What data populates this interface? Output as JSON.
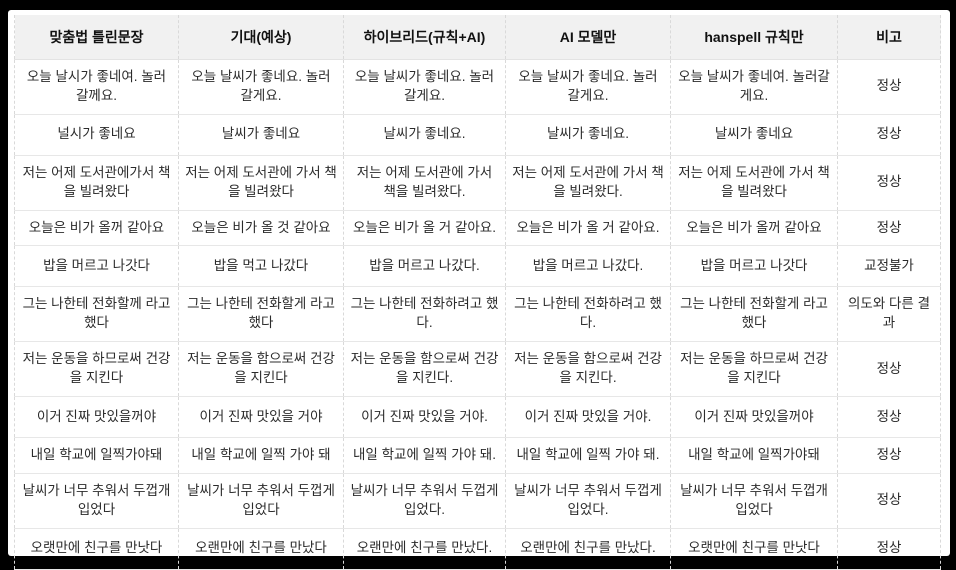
{
  "colors": {
    "frame_background": "#000000",
    "page_background": "#ffffff",
    "header_background": "#f1f1f1",
    "row_border": "#e7e7e7",
    "column_border": "#d9d9d9",
    "text": "#2b2b2b"
  },
  "table": {
    "headers": [
      "맞춤법 틀린문장",
      "기대(예상)",
      "하이브리드(규칙+AI)",
      "AI 모델만",
      "hanspell 규칙만",
      "비고"
    ],
    "rows": [
      [
        "오늘 날시가 좋네여. 놀러갈께요.",
        "오늘 날씨가 좋네요. 놀러 갈게요.",
        "오늘 날씨가 좋네요. 놀러 갈게요.",
        "오늘 날씨가 좋네요. 놀러 갈게요.",
        "오늘 날씨가 좋네여. 놀러갈게요.",
        "정상"
      ],
      [
        "널시가 좋네요",
        "날씨가 좋네요",
        "날씨가 좋네요.",
        "날씨가 좋네요.",
        "날씨가 좋네요",
        "정상"
      ],
      [
        "저는 어제 도서관에가서 책을 빌려왔다",
        "저는 어제 도서관에 가서 책을 빌려왔다",
        "저는 어제 도서관에 가서 책을 빌려왔다.",
        "저는 어제 도서관에 가서 책을 빌려왔다.",
        "저는 어제 도서관에 가서 책을 빌려왔다",
        "정상"
      ],
      [
        "오늘은 비가 올꺼 같아요",
        "오늘은 비가 올 것 같아요",
        "오늘은 비가 올 거 같아요.",
        "오늘은 비가 올 거 같아요.",
        "오늘은 비가 올꺼 같아요",
        "정상"
      ],
      [
        "밥을 머르고 나갓다",
        "밥을 먹고 나갔다",
        "밥을 머르고 나갔다.",
        "밥을 머르고 나갔다.",
        "밥을 머르고 나갓다",
        "교정불가"
      ],
      [
        "그는 나한테 전화할께 라고 했다",
        "그는 나한테 전화할게 라고 했다",
        "그는 나한테 전화하려고 했다.",
        "그는 나한테 전화하려고 했다.",
        "그는 나한테 전화할게 라고 했다",
        "의도와 다른 결과"
      ],
      [
        "저는 운동을 하므로써 건강을 지킨다",
        "저는 운동을 함으로써 건강을 지킨다",
        "저는 운동을 함으로써 건강을 지킨다.",
        "저는 운동을 함으로써 건강을 지킨다.",
        "저는 운동을 하므로써 건강을 지킨다",
        "정상"
      ],
      [
        "이거 진짜 맛있을꺼야",
        "이거 진짜 맛있을 거야",
        "이거 진짜 맛있을 거야.",
        "이거 진짜 맛있을 거야.",
        "이거 진짜 맛있을꺼야",
        "정상"
      ],
      [
        "내일 학교에 일찍가야돼",
        "내일 학교에 일찍 가야 돼",
        "내일 학교에 일찍 가야 돼.",
        "내일 학교에 일찍 가야 돼.",
        "내일 학교에 일찍가야돼",
        "정상"
      ],
      [
        "날씨가 너무 추워서 두껍개 입었다",
        "날씨가 너무 추워서 두껍게 입었다",
        "날씨가 너무 추워서 두껍게 입었다.",
        "날씨가 너무 추워서 두껍게 입었다.",
        "날씨가 너무 추워서 두껍개 입었다",
        "정상"
      ],
      [
        "오랫만에 친구를 만낫다",
        "오랜만에 친구를 만났다",
        "오랜만에 친구를 만났다.",
        "오랜만에 친구를 만났다.",
        "오랫만에 친구를 만낫다",
        "정상"
      ]
    ]
  }
}
